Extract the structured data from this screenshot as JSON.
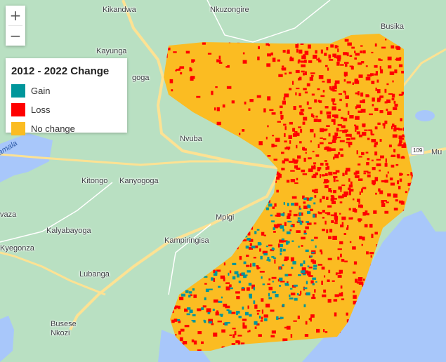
{
  "legend": {
    "title": "2012 - 2022 Change",
    "items": [
      {
        "label": "Gain",
        "color": "#00969b"
      },
      {
        "label": "Loss",
        "color": "#ff0000"
      },
      {
        "label": "No change",
        "color": "#fbbc22"
      }
    ]
  },
  "zoom": {
    "in_label": "+",
    "out_label": "−"
  },
  "places": {
    "kikandwa": "Kikandwa",
    "nkuzongire": "Nkuzongire",
    "busika": "Busika",
    "kayunga": "Kayunga",
    "goga": "goga",
    "nvuba": "Nvuba",
    "kitongo": "Kitongo",
    "kanyogoga": "Kanyogoga",
    "mpigi": "Mpigi",
    "kalyabayoga": "Kalyabayoga",
    "kampiringisa": "Kampiringisa",
    "kyegonza": "Kyegonza",
    "lubanga": "Lubanga",
    "busese_nkozi": "Busese\nNkozi",
    "vaza": "vaza",
    "mu": "Mu",
    "lake": "amala"
  },
  "road_shield": "109",
  "colors": {
    "land": "#b9e0c2",
    "water": "#a8c7fa",
    "road": "#fde293"
  }
}
